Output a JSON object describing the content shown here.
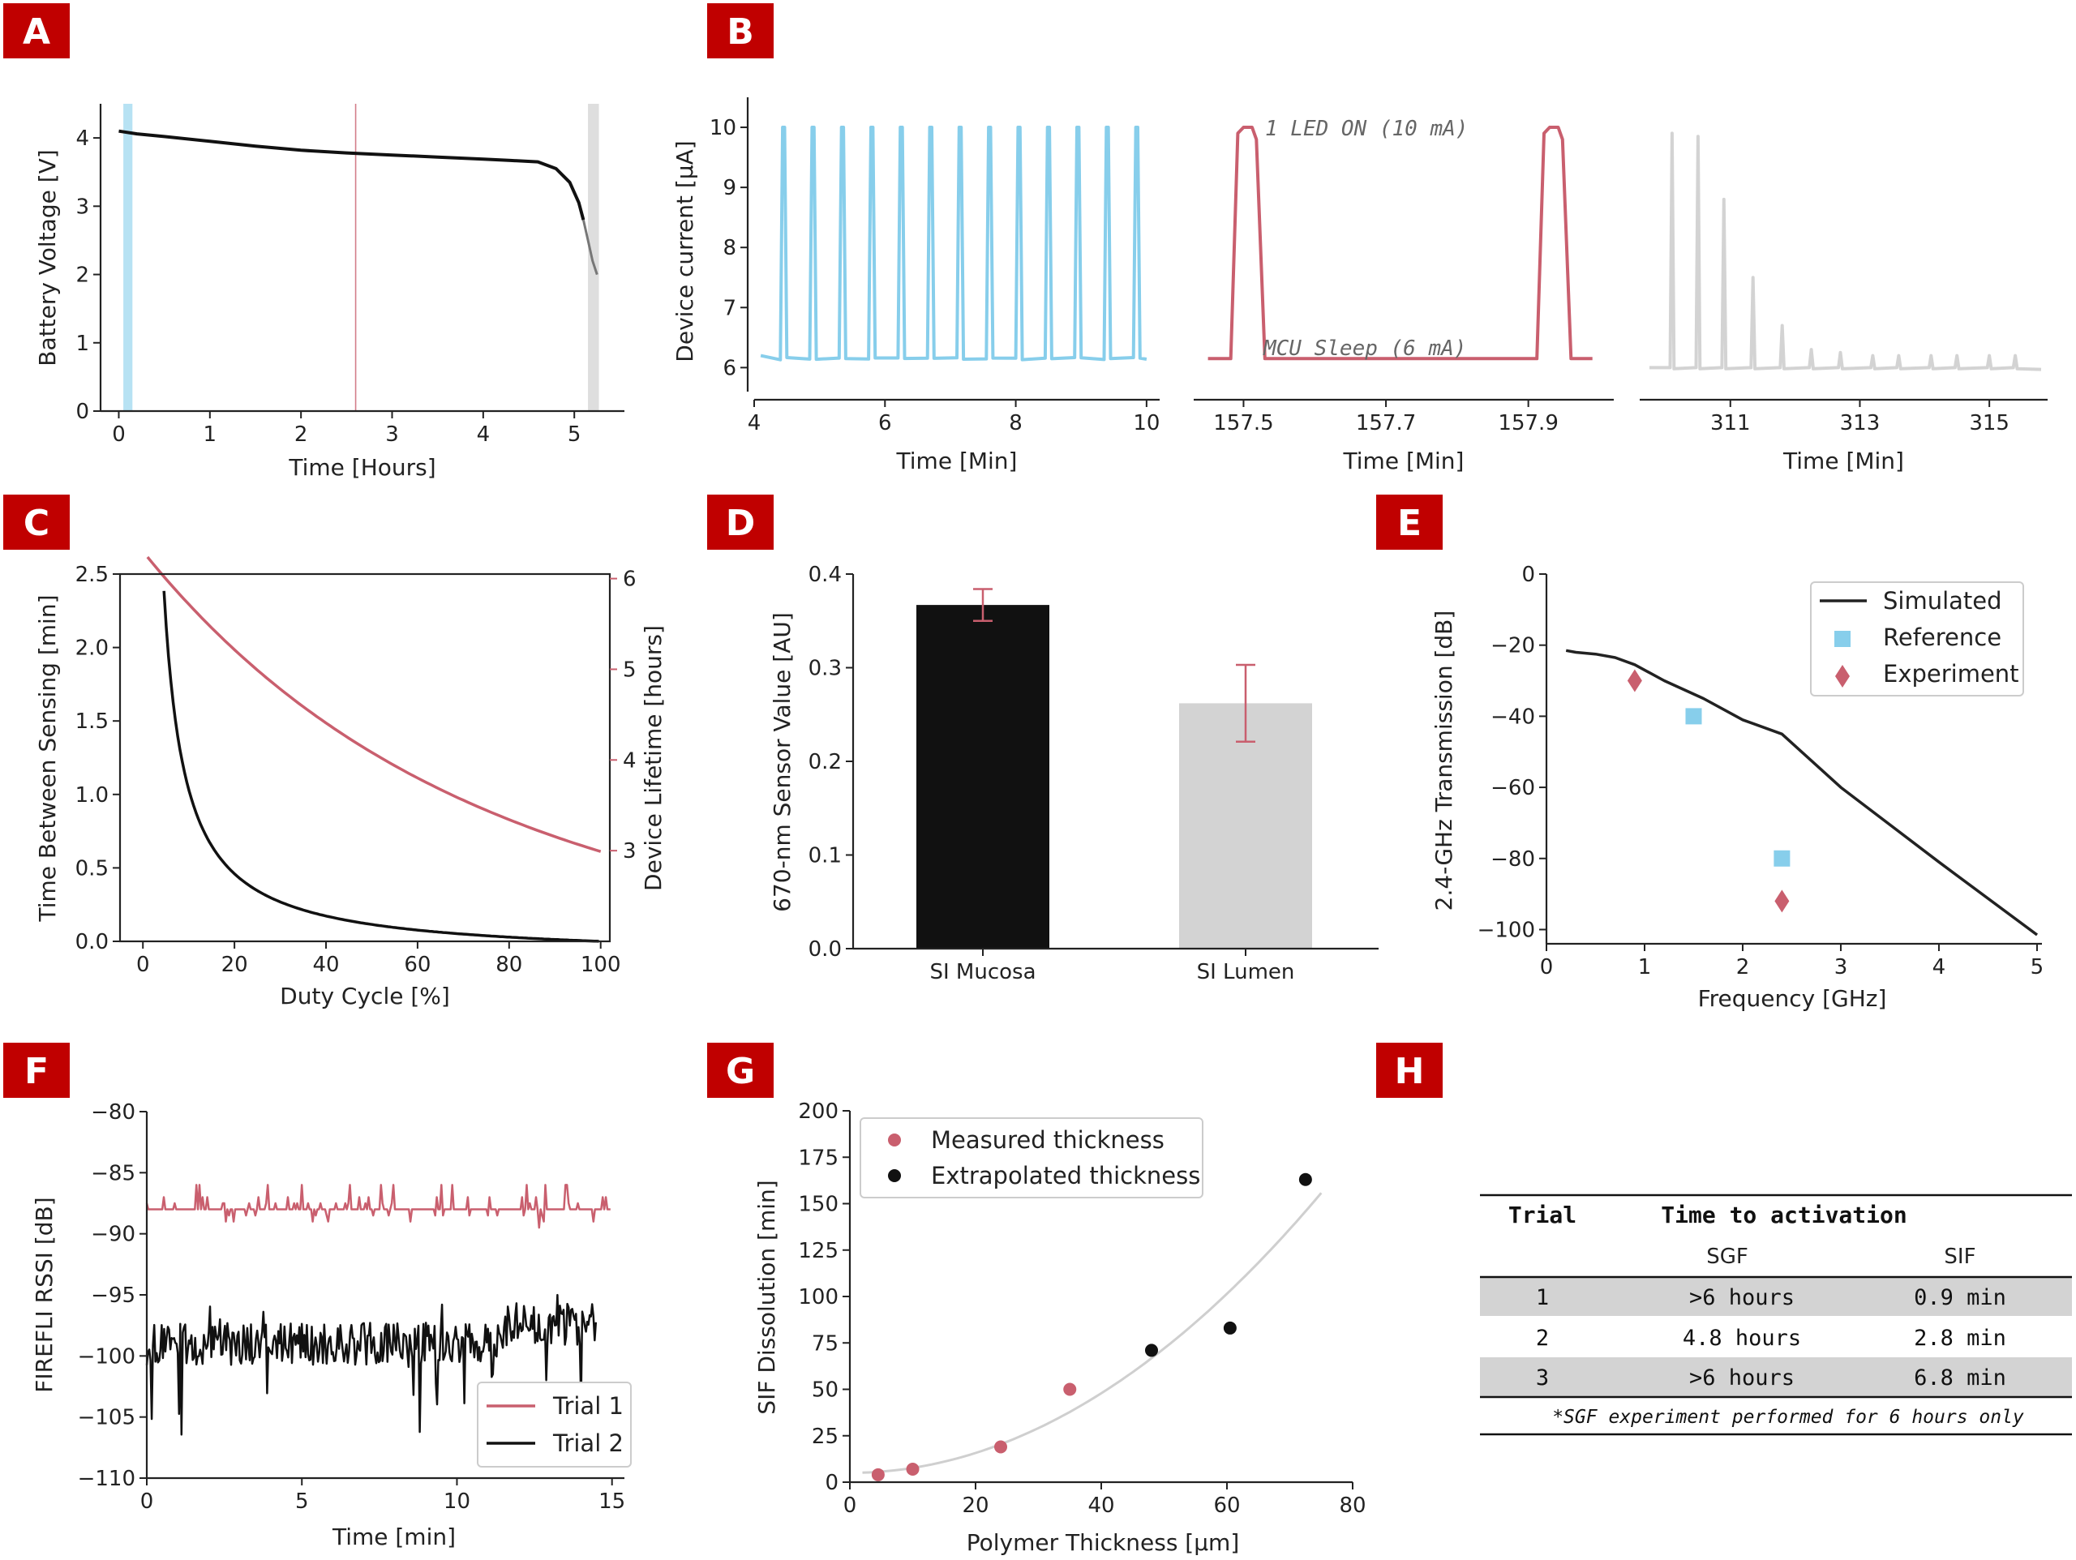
{
  "colors": {
    "badge": "#C00000",
    "blue": "#87CEEB",
    "red": "#C95F6E",
    "gray": "#D3D3D3",
    "black": "#111111"
  },
  "panels": {
    "A": "A",
    "B": "B",
    "C": "C",
    "D": "D",
    "E": "E",
    "F": "F",
    "G": "G",
    "H": "H"
  },
  "chart_data": [
    {
      "id": "A",
      "type": "line",
      "xlabel": "Time [Hours]",
      "ylabel": "Battery Voltage [V]",
      "xlim": [
        -0.2,
        5.55
      ],
      "ylim": [
        0,
        4.5
      ],
      "xticks": [
        0,
        1,
        2,
        3,
        4,
        5
      ],
      "yticks": [
        0,
        1,
        2,
        3,
        4
      ],
      "x": [
        0,
        0.2,
        0.5,
        1,
        1.5,
        2,
        2.5,
        3,
        3.5,
        4,
        4.3,
        4.6,
        4.8,
        4.95,
        5.05,
        5.1,
        5.15,
        5.2,
        5.25
      ],
      "y": [
        4.1,
        4.06,
        4.02,
        3.95,
        3.88,
        3.82,
        3.78,
        3.75,
        3.72,
        3.69,
        3.67,
        3.65,
        3.55,
        3.35,
        3.05,
        2.8,
        2.5,
        2.2,
        2.0
      ],
      "shaded": [
        {
          "from": 0.05,
          "to": 0.15,
          "color": "blue"
        },
        {
          "from": 5.15,
          "to": 5.27,
          "color": "gray"
        }
      ],
      "vline": 2.6
    },
    {
      "id": "B",
      "type": "line",
      "ylabel": "Device current [μA]",
      "xlabel": "Time [Min]",
      "ylim": [
        5.6,
        10.5
      ],
      "yticks": [
        6,
        7,
        8,
        9,
        10
      ],
      "subplots": [
        {
          "xlim": [
            4,
            10.2
          ],
          "xticks": [
            4,
            6,
            8,
            10
          ],
          "color": "blue",
          "pulses": [
            4.45,
            4.9,
            5.35,
            5.8,
            6.25,
            6.7,
            7.15,
            7.6,
            8.05,
            8.5,
            8.95,
            9.4,
            9.85
          ],
          "base": 6.15,
          "peak": 10
        },
        {
          "xlim": [
            157.43,
            158.02
          ],
          "xticks": [
            157.5,
            157.7,
            157.9
          ],
          "color": "red",
          "pulses": [
            157.5,
            157.93
          ],
          "base": 6.15,
          "peak": 10,
          "annotations": [
            "1 LED ON (10 mA)",
            "MCU Sleep (6 mA)"
          ]
        },
        {
          "xlim": [
            309.6,
            315.9
          ],
          "xticks": [
            311,
            313,
            315
          ],
          "color": "gray",
          "pulses": [
            310.1,
            310.5,
            310.9,
            311.35,
            311.8,
            312.25,
            312.7,
            313.2,
            313.6,
            314.1,
            314.5,
            315.0,
            315.4
          ],
          "peaks": [
            9.9,
            9.85,
            8.8,
            7.5,
            6.7,
            6.3,
            6.25,
            6.2,
            6.2,
            6.2,
            6.2,
            6.2,
            6.2
          ],
          "base": 6.0
        }
      ]
    },
    {
      "id": "C",
      "type": "line",
      "xlabel": "Duty Cycle [%]",
      "ylabel": "Time Between Sensing [min]",
      "y2label": "Device Lifetime [hours]",
      "xlim": [
        -5,
        102
      ],
      "ylim": [
        0,
        2.5
      ],
      "y2lim": [
        2,
        6.05
      ],
      "xticks": [
        0,
        20,
        40,
        60,
        80,
        100
      ],
      "yticks": [
        0.0,
        0.5,
        1.0,
        1.5,
        2.0,
        2.5
      ],
      "y2ticks": [
        3,
        4,
        5,
        6
      ]
    },
    {
      "id": "D",
      "type": "bar",
      "categories": [
        "SI Mucosa",
        "SI Lumen"
      ],
      "values": [
        0.367,
        0.262
      ],
      "errors": [
        0.017,
        0.041
      ],
      "ylabel": "670-nm Sensor Value [AU]",
      "ylim": [
        0,
        0.4
      ],
      "yticks": [
        0.0,
        0.1,
        0.2,
        0.3,
        0.4
      ]
    },
    {
      "id": "E",
      "type": "line",
      "xlabel": "Frequency [GHz]",
      "ylabel": "2.4-GHz Transmission [dB]",
      "xlim": [
        0,
        5.05
      ],
      "ylim": [
        -104,
        0
      ],
      "xticks": [
        0,
        1,
        2,
        3,
        4,
        5
      ],
      "yticks": [
        0,
        -20,
        -40,
        -60,
        -80,
        -100
      ],
      "series": [
        {
          "name": "Simulated",
          "x": [
            0.2,
            0.3,
            0.5,
            0.7,
            0.9,
            1.2,
            1.6,
            2.0,
            2.4,
            3.0,
            4.0,
            5.0
          ],
          "y": [
            -21.5,
            -22,
            -22.5,
            -23.5,
            -25.5,
            -30,
            -35,
            -41,
            -45,
            -60,
            -81,
            -101.5
          ]
        },
        {
          "name": "Reference",
          "x": [
            1.5,
            2.4
          ],
          "y": [
            -40,
            -80
          ]
        },
        {
          "name": "Experiment",
          "x": [
            0.9,
            2.4
          ],
          "y": [
            -30,
            -92
          ]
        }
      ]
    },
    {
      "id": "F",
      "type": "line",
      "xlabel": "Time [min]",
      "ylabel": "FIREFLI RSSI [dB]",
      "xlim": [
        0,
        15.4
      ],
      "ylim": [
        -110,
        -80
      ],
      "xticks": [
        0,
        5,
        10,
        15
      ],
      "yticks": [
        -80,
        -85,
        -90,
        -95,
        -100,
        -105,
        -110
      ],
      "series": [
        {
          "name": "Trial 1",
          "mean": -88
        },
        {
          "name": "Trial 2",
          "mean": -99
        }
      ]
    },
    {
      "id": "G",
      "type": "scatter",
      "xlabel": "Polymer Thickness [μm]",
      "ylabel": "SIF Dissolution [min]",
      "xlim": [
        0,
        80
      ],
      "ylim": [
        0,
        200
      ],
      "xticks": [
        0,
        20,
        40,
        60,
        80
      ],
      "yticks": [
        0,
        25,
        50,
        75,
        100,
        125,
        150,
        175,
        200
      ],
      "series": [
        {
          "name": "Measured thickness",
          "x": [
            4.5,
            10,
            24,
            35
          ],
          "y": [
            4,
            7,
            19,
            50
          ]
        },
        {
          "name": "Extrapolated thickness",
          "x": [
            48,
            60.5,
            72.5
          ],
          "y": [
            71,
            83,
            163
          ]
        }
      ],
      "fit": {
        "x0": 2,
        "x1": 75,
        "a": 0.0268,
        "c": 5
      }
    },
    {
      "id": "H",
      "type": "table",
      "headers": [
        "Trial",
        "Time to activation"
      ],
      "subheaders": [
        "",
        "SGF",
        "SIF"
      ],
      "rows": [
        [
          "1",
          ">6 hours",
          "0.9 min"
        ],
        [
          "2",
          "4.8 hours",
          "2.8 min"
        ],
        [
          "3",
          ">6 hours",
          "6.8 min"
        ]
      ],
      "footnote": "*SGF experiment performed for 6 hours only"
    }
  ]
}
